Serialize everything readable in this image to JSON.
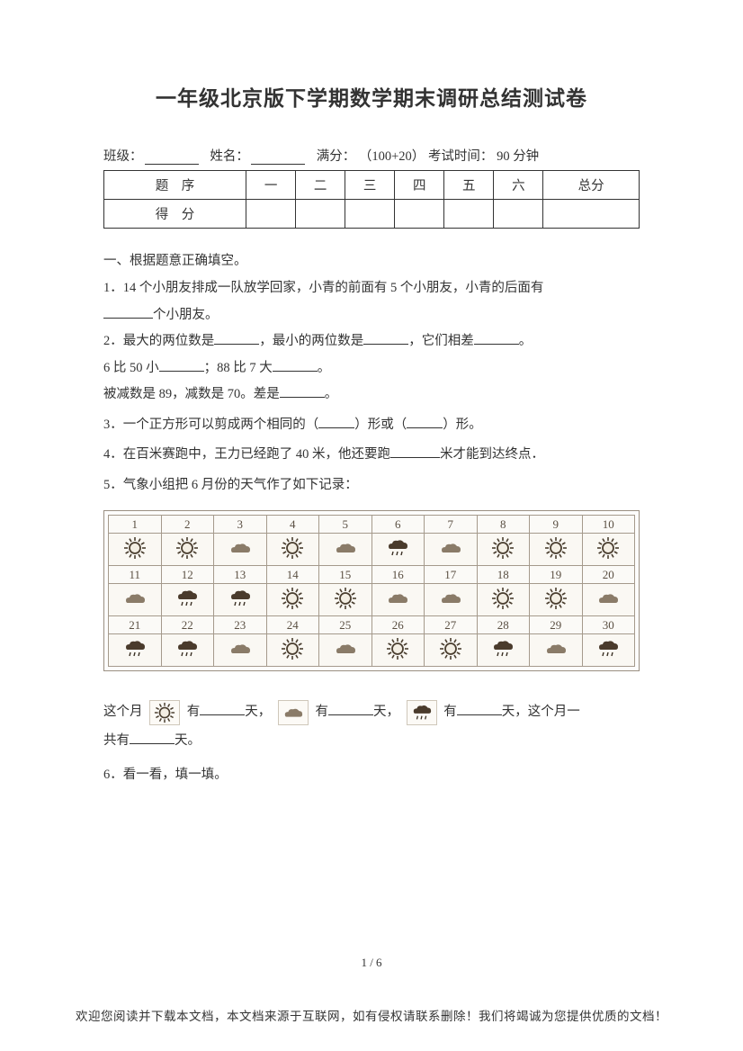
{
  "title": "一年级北京版下学期数学期末调研总结测试卷",
  "meta": {
    "class_label": "班级：",
    "name_label": "姓名：",
    "full_score_label": "满分：",
    "full_score_value": "（100+20）",
    "time_label": "考试时间：",
    "time_value": "90 分钟"
  },
  "score_table": {
    "headers": [
      "题 序",
      "一",
      "二",
      "三",
      "四",
      "五",
      "六",
      "总分"
    ],
    "row_label": "得 分"
  },
  "section1_title": "一、根据题意正确填空。",
  "q1_a": "1．14 个小朋友排成一队放学回家，小青的前面有 5 个小朋友，小青的后面有",
  "q1_b": "个小朋友。",
  "q2_a": "2．最大的两位数是",
  "q2_b": "，最小的两位数是",
  "q2_c": "，它们相差",
  "q2_d": "。",
  "q2_line2_a": "6 比 50 小",
  "q2_line2_b": "；88 比 7 大",
  "q2_line2_c": "。",
  "q2_line3_a": "被减数是 89，减数是 70。差是",
  "q2_line3_b": "。",
  "q3_a": "3．一个正方形可以剪成两个相同的（",
  "q3_b": "）形或（",
  "q3_c": "）形。",
  "q4_a": "4．在百米赛跑中，王力已经跑了 40 米，他还要跑",
  "q4_b": "米才能到达终点．",
  "q5": "5．气象小组把 6 月份的天气作了如下记录：",
  "weather": {
    "days": [
      "1",
      "2",
      "3",
      "4",
      "5",
      "6",
      "7",
      "8",
      "9",
      "10",
      "11",
      "12",
      "13",
      "14",
      "15",
      "16",
      "17",
      "18",
      "19",
      "20",
      "21",
      "22",
      "23",
      "24",
      "25",
      "26",
      "27",
      "28",
      "29",
      "30"
    ],
    "types": [
      "sun",
      "sun",
      "cloud",
      "sun",
      "cloud",
      "rain",
      "cloud",
      "sun",
      "sun",
      "sun",
      "cloud",
      "rain",
      "rain",
      "sun",
      "sun",
      "cloud",
      "cloud",
      "sun",
      "sun",
      "cloud",
      "rain",
      "rain",
      "cloud",
      "sun",
      "cloud",
      "sun",
      "sun",
      "rain",
      "cloud",
      "rain"
    ],
    "colors": {
      "sun_stroke": "#4a3e2f",
      "sun_fill": "#f3eee3",
      "cloud_fill": "#8a7b68",
      "rain_fill": "#4a3b2c",
      "rain_drop": "#3a3024"
    }
  },
  "summary": {
    "prefix": "这个月",
    "has": "有",
    "days_unit": "天，",
    "days_unit2": "天，这个月一",
    "line2": "共有",
    "line2_end": "天。"
  },
  "q6": "6．看一看，填一填。",
  "page_num": "1 / 6",
  "footer": "欢迎您阅读并下载本文档，本文档来源于互联网，如有侵权请联系删除！我们将竭诚为您提供优质的文档！"
}
